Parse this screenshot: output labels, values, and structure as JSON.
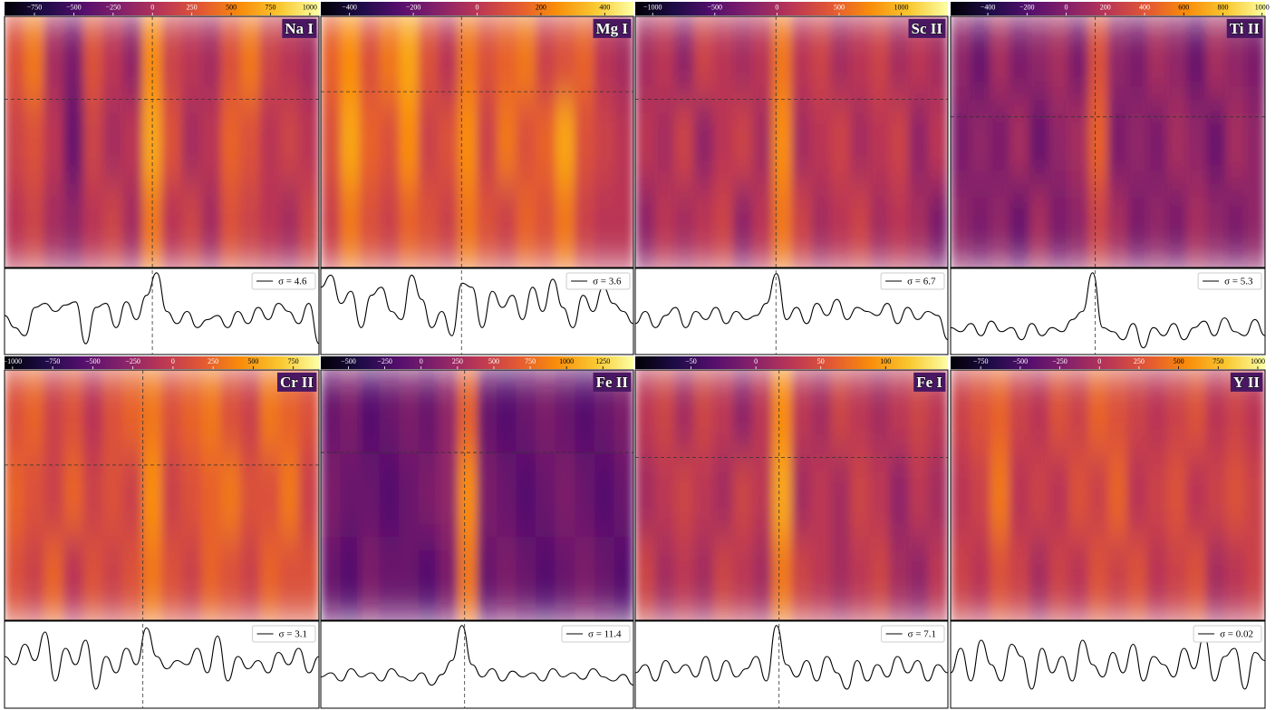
{
  "chart_data": [
    {
      "type": "heatmap",
      "title": "Na I",
      "clim": [
        -940,
        1058
      ],
      "cticks": [
        {
          "value": -750,
          "label": "−750"
        },
        {
          "value": -500,
          "label": "−500"
        },
        {
          "value": -250,
          "label": "−250"
        },
        0,
        250,
        500,
        750,
        1000
      ],
      "z": [
        [
          260,
          460,
          -40,
          -240,
          260,
          60,
          -140,
          560,
          160,
          60,
          -40,
          260,
          460,
          160,
          60,
          -40
        ],
        [
          160,
          260,
          60,
          -340,
          160,
          -40,
          60,
          660,
          260,
          -40,
          60,
          360,
          260,
          60,
          160,
          60
        ],
        [
          60,
          160,
          -40,
          -140,
          60,
          160,
          -40,
          460,
          60,
          160,
          -40,
          260,
          160,
          60,
          -40,
          160
        ]
      ],
      "ylim": [
        0,
        1
      ],
      "series": [
        {
          "name": "σ = 4.6",
          "color": "#000000",
          "values": [
            0.45,
            0.3,
            0.2,
            0.55,
            0.6,
            0.5,
            0.58,
            0.62,
            0.1,
            0.55,
            0.6,
            0.3,
            0.62,
            0.4,
            0.7,
            0.98,
            0.5,
            0.35,
            0.5,
            0.3,
            0.4,
            0.45,
            0.3,
            0.5,
            0.35,
            0.55,
            0.4,
            0.6,
            0.5,
            0.35,
            0.6,
            0.1
          ]
        }
      ]
    },
    {
      "type": "heatmap",
      "title": "Mg I",
      "clim": [
        -490,
        490
      ],
      "cticks": [
        {
          "value": -400,
          "label": "−400"
        },
        {
          "value": -200,
          "label": "−200"
        },
        0,
        200,
        400
      ],
      "z": [
        [
          147,
          245,
          98,
          196,
          294,
          98,
          0,
          196,
          98,
          147,
          196,
          49,
          98,
          147,
          0,
          -49
        ],
        [
          98,
          294,
          147,
          98,
          245,
          49,
          98,
          245,
          49,
          196,
          98,
          147,
          294,
          98,
          49,
          0
        ],
        [
          49,
          196,
          98,
          49,
          147,
          98,
          49,
          196,
          98,
          49,
          147,
          98,
          196,
          49,
          0,
          0
        ]
      ],
      "ylim": [
        0,
        1
      ],
      "series": [
        {
          "name": "σ = 3.6",
          "color": "#000000",
          "values": [
            0.8,
            0.95,
            0.6,
            0.75,
            0.3,
            0.7,
            0.8,
            0.5,
            0.4,
            0.95,
            0.65,
            0.3,
            0.5,
            0.2,
            0.85,
            0.8,
            0.3,
            0.75,
            0.55,
            0.7,
            0.4,
            0.8,
            0.5,
            0.9,
            0.55,
            0.3,
            0.7,
            0.5,
            0.8,
            0.6,
            0.5,
            0.35
          ]
        }
      ]
    },
    {
      "type": "heatmap",
      "title": "Sc II",
      "clim": [
        -1140,
        1375
      ],
      "cticks": [
        {
          "value": -1000,
          "label": "−1000"
        },
        {
          "value": -500,
          "label": "−500"
        },
        0,
        500,
        1000
      ],
      "z": [
        [
          -8,
          118,
          -134,
          243,
          118,
          -8,
          118,
          621,
          118,
          243,
          -8,
          118,
          243,
          -8,
          118,
          -8
        ],
        [
          118,
          -8,
          243,
          -134,
          118,
          243,
          -8,
          746,
          -8,
          118,
          243,
          -8,
          118,
          243,
          -134,
          118
        ],
        [
          -134,
          118,
          -8,
          118,
          243,
          -134,
          118,
          621,
          243,
          -8,
          118,
          243,
          -8,
          118,
          -8,
          -260
        ]
      ],
      "ylim": [
        0,
        1
      ],
      "series": [
        {
          "name": "σ = 6.7",
          "color": "#000000",
          "values": [
            0.35,
            0.5,
            0.3,
            0.45,
            0.55,
            0.3,
            0.5,
            0.4,
            0.55,
            0.35,
            0.5,
            0.4,
            0.45,
            0.6,
            0.97,
            0.4,
            0.55,
            0.35,
            0.6,
            0.45,
            0.65,
            0.4,
            0.55,
            0.5,
            0.45,
            0.6,
            0.35,
            0.55,
            0.4,
            0.5,
            0.45,
            0.15
          ]
        }
      ]
    },
    {
      "type": "heatmap",
      "title": "Ti II",
      "clim": [
        -590,
        1015
      ],
      "cticks": [
        {
          "value": -400,
          "label": "−400"
        },
        {
          "value": -200,
          "label": "−200"
        },
        0,
        200,
        400,
        600,
        800,
        1000
      ],
      "z": [
        [
          52,
          -108,
          132,
          -28,
          52,
          132,
          -28,
          373,
          52,
          -28,
          132,
          52,
          -108,
          132,
          52,
          -28
        ],
        [
          -28,
          52,
          -28,
          132,
          -108,
          52,
          132,
          453,
          -28,
          52,
          -28,
          132,
          52,
          -108,
          132,
          52
        ],
        [
          52,
          -28,
          52,
          -108,
          132,
          -28,
          52,
          293,
          132,
          -28,
          52,
          -28,
          132,
          52,
          -28,
          52
        ]
      ],
      "ylim": [
        0,
        1
      ],
      "series": [
        {
          "name": "σ = 5.3",
          "color": "#000000",
          "values": [
            0.3,
            0.25,
            0.35,
            0.2,
            0.38,
            0.25,
            0.3,
            0.15,
            0.35,
            0.2,
            0.3,
            0.25,
            0.4,
            0.5,
            0.98,
            0.3,
            0.25,
            0.15,
            0.35,
            0.05,
            0.3,
            0.2,
            0.35,
            0.15,
            0.3,
            0.38,
            0.2,
            0.42,
            0.25,
            0.2,
            0.4,
            0.2
          ]
        }
      ]
    },
    {
      "type": "heatmap",
      "title": "Cr II",
      "clim": [
        -1050,
        910
      ],
      "cticks": [
        {
          "value": -1000,
          "label": "−1000"
        },
        {
          "value": -750,
          "label": "−750"
        },
        {
          "value": -500,
          "label": "−500"
        },
        {
          "value": -250,
          "label": "−250"
        },
        0,
        250,
        500,
        750
      ],
      "z": [
        [
          126,
          224,
          28,
          126,
          -70,
          126,
          224,
          322,
          126,
          224,
          322,
          126,
          28,
          322,
          224,
          126
        ],
        [
          224,
          126,
          28,
          224,
          28,
          126,
          28,
          420,
          28,
          126,
          224,
          322,
          126,
          126,
          322,
          28
        ],
        [
          126,
          28,
          224,
          -70,
          126,
          28,
          126,
          322,
          126,
          28,
          224,
          126,
          28,
          224,
          126,
          126
        ]
      ],
      "ylim": [
        0,
        1
      ],
      "series": [
        {
          "name": "σ = 3.1",
          "color": "#000000",
          "values": [
            0.6,
            0.5,
            0.75,
            0.55,
            0.9,
            0.3,
            0.7,
            0.5,
            0.8,
            0.2,
            0.6,
            0.4,
            0.7,
            0.5,
            0.95,
            0.6,
            0.45,
            0.55,
            0.5,
            0.7,
            0.4,
            0.85,
            0.3,
            0.6,
            0.45,
            0.55,
            0.4,
            0.65,
            0.5,
            0.7,
            0.4,
            0.6
          ]
        }
      ]
    },
    {
      "type": "heatmap",
      "title": "Fe II",
      "clim": [
        -690,
        1460
      ],
      "cticks": [
        {
          "value": -500,
          "label": "−500"
        },
        {
          "value": -250,
          "label": "−250"
        },
        0,
        250,
        500,
        750,
        1000,
        1250
      ],
      "z": [
        [
          -45,
          62,
          -152,
          -45,
          62,
          -45,
          170,
          708,
          -45,
          -152,
          -45,
          62,
          -45,
          -152,
          -45,
          62
        ],
        [
          62,
          -45,
          -45,
          -152,
          -45,
          62,
          170,
          923,
          62,
          -45,
          -152,
          -45,
          62,
          -45,
          -152,
          -45
        ],
        [
          -45,
          -152,
          62,
          -45,
          -45,
          -152,
          62,
          815,
          -45,
          62,
          -45,
          -152,
          -45,
          62,
          -45,
          -152
        ]
      ],
      "ylim": [
        0,
        1
      ],
      "series": [
        {
          "name": "σ = 11.4",
          "color": "#000000",
          "values": [
            0.35,
            0.4,
            0.3,
            0.45,
            0.35,
            0.4,
            0.3,
            0.45,
            0.35,
            0.3,
            0.4,
            0.25,
            0.38,
            0.55,
            0.98,
            0.5,
            0.35,
            0.45,
            0.3,
            0.42,
            0.35,
            0.4,
            0.3,
            0.45,
            0.35,
            0.4,
            0.32,
            0.45,
            0.35,
            0.3,
            0.38,
            0.25
          ]
        }
      ]
    },
    {
      "type": "heatmap",
      "title": "Fe I",
      "clim": [
        -93,
        148
      ],
      "cticks": [
        {
          "value": -50,
          "label": "−50"
        },
        0,
        50,
        100
      ],
      "z": [
        [
          28,
          40,
          15,
          40,
          28,
          3,
          28,
          88,
          28,
          15,
          40,
          28,
          15,
          28,
          40,
          28
        ],
        [
          15,
          28,
          40,
          28,
          15,
          40,
          28,
          100,
          15,
          28,
          15,
          40,
          28,
          3,
          28,
          15
        ],
        [
          40,
          15,
          28,
          15,
          40,
          28,
          15,
          76,
          40,
          28,
          15,
          28,
          40,
          15,
          3,
          28
        ]
      ],
      "ylim": [
        0,
        1
      ],
      "series": [
        {
          "name": "σ = 7.1",
          "color": "#000000",
          "values": [
            0.4,
            0.5,
            0.3,
            0.55,
            0.4,
            0.5,
            0.35,
            0.6,
            0.3,
            0.55,
            0.35,
            0.45,
            0.6,
            0.3,
            0.98,
            0.5,
            0.35,
            0.55,
            0.3,
            0.6,
            0.4,
            0.2,
            0.55,
            0.3,
            0.5,
            0.35,
            0.6,
            0.4,
            0.55,
            0.3,
            0.5,
            0.4
          ]
        }
      ]
    },
    {
      "type": "heatmap",
      "title": "Y II",
      "clim": [
        -940,
        1046
      ],
      "cticks": [
        {
          "value": -750,
          "label": "−750"
        },
        {
          "value": -500,
          "label": "−500"
        },
        {
          "value": -250,
          "label": "−250"
        },
        0,
        250,
        500,
        750,
        1000
      ],
      "z": [
        [
          152,
          252,
          351,
          152,
          53,
          252,
          152,
          351,
          252,
          152,
          53,
          152,
          252,
          53,
          152,
          53
        ],
        [
          53,
          152,
          450,
          53,
          152,
          53,
          252,
          152,
          351,
          53,
          152,
          252,
          53,
          152,
          252,
          152
        ],
        [
          152,
          53,
          252,
          152,
          -46,
          152,
          53,
          252,
          152,
          252,
          53,
          152,
          252,
          -46,
          53,
          152
        ]
      ],
      "ylim": [
        0,
        1
      ],
      "series": [
        {
          "name": "σ = 0.02",
          "color": "#000000",
          "values": [
            0.4,
            0.7,
            0.3,
            0.8,
            0.5,
            0.3,
            0.75,
            0.6,
            0.2,
            0.7,
            0.4,
            0.6,
            0.3,
            0.8,
            0.5,
            0.35,
            0.65,
            0.4,
            0.75,
            0.3,
            0.6,
            0.5,
            0.35,
            0.7,
            0.45,
            0.85,
            0.3,
            0.6,
            0.7,
            0.2,
            0.65,
            0.55
          ]
        }
      ]
    }
  ]
}
